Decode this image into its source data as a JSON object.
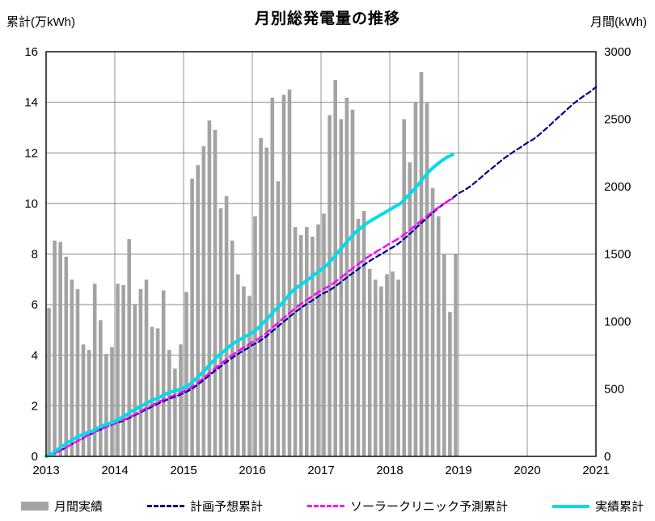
{
  "page": {
    "title": "月別総発電量の推移",
    "left_axis_unit": "累計(万kWh)",
    "right_axis_unit": "月間(kWh)"
  },
  "chart_data": {
    "type": "bar",
    "subtype": "combo-bar-and-cumulative-lines",
    "title": "月別総発電量の推移",
    "legend_position": "bottom",
    "grid": true,
    "x_axis": {
      "min": 2013,
      "max": 2021,
      "tick_labels": [
        "2013",
        "2014",
        "2015",
        "2016",
        "2017",
        "2018",
        "2019",
        "2020",
        "2021"
      ]
    },
    "left_axis": {
      "label": "累計(万kWh)",
      "min": 0,
      "max": 16,
      "step": 2,
      "tick_labels": [
        "0",
        "2",
        "4",
        "6",
        "8",
        "10",
        "12",
        "14",
        "16"
      ]
    },
    "right_axis": {
      "label": "月間(kWh)",
      "min": 0,
      "max": 3000,
      "step": 500,
      "tick_labels": [
        "0",
        "500",
        "1000",
        "1500",
        "2000",
        "2500",
        "3000"
      ]
    },
    "monthly_actual": {
      "id": "monthly-actual",
      "name": "月間実績",
      "type": "bar",
      "axis": "right",
      "color": "#a3a3a3",
      "start_month": "2013-01",
      "values_kwh": [
        1100,
        1600,
        1590,
        1480,
        1310,
        1240,
        830,
        790,
        1280,
        1010,
        760,
        810,
        1280,
        1270,
        1610,
        1130,
        1240,
        1310,
        960,
        950,
        1230,
        790,
        650,
        830,
        1220,
        2060,
        2160,
        2300,
        2490,
        2420,
        1840,
        1930,
        1600,
        1350,
        1260,
        1190,
        1780,
        2360,
        2290,
        2660,
        2040,
        2680,
        2720,
        1700,
        1640,
        1700,
        1630,
        1720,
        1800,
        2530,
        2790,
        2500,
        2660,
        2570,
        1760,
        1820,
        1390,
        1310,
        1260,
        1350,
        1370,
        1310,
        2500,
        2180,
        2630,
        2850,
        2620,
        1990,
        1780,
        1500,
        1070,
        1500
      ]
    },
    "series": [
      {
        "id": "plan-cumulative",
        "name": "計画予想累計",
        "type": "line",
        "axis": "left",
        "color": "#00008b",
        "dash": "6 4",
        "width": 2.2,
        "start_month": "2013-01",
        "cumulative_man_kwh": [
          0,
          0.08,
          0.18,
          0.29,
          0.42,
          0.55,
          0.66,
          0.79,
          0.9,
          1.01,
          1.11,
          1.2,
          1.3,
          1.37,
          1.46,
          1.57,
          1.68,
          1.8,
          1.91,
          2.03,
          2.13,
          2.23,
          2.32,
          2.4,
          2.5,
          2.61,
          2.76,
          2.93,
          3.11,
          3.3,
          3.47,
          3.65,
          3.82,
          3.97,
          4.12,
          4.25,
          4.4,
          4.52,
          4.67,
          4.85,
          5.04,
          5.24,
          5.42,
          5.61,
          5.79,
          5.95,
          6.1,
          6.24,
          6.4,
          6.51,
          6.64,
          6.81,
          6.98,
          7.16,
          7.32,
          7.49,
          7.65,
          7.8,
          7.93,
          8.06,
          8.2,
          8.33,
          8.5,
          8.7,
          8.9,
          9.12,
          9.32,
          9.53,
          9.73,
          9.91,
          10.07,
          10.22,
          10.4,
          10.52,
          10.67,
          10.85,
          11.04,
          11.24,
          11.42,
          11.61,
          11.79,
          11.95,
          12.1,
          12.24,
          12.4,
          12.53,
          12.7,
          12.9,
          13.1,
          13.32,
          13.52,
          13.73,
          13.93,
          14.11,
          14.27,
          14.42,
          14.6
        ]
      },
      {
        "id": "solar-clinic-forecast-cumulative",
        "name": "ソーラークリニック予測累計",
        "type": "line",
        "axis": "left",
        "color": "#ff00ff",
        "dash": "8 5",
        "width": 2.5,
        "start_month": "2013-01",
        "cumulative_man_kwh": [
          0,
          0.08,
          0.18,
          0.3,
          0.42,
          0.55,
          0.67,
          0.8,
          0.92,
          1.02,
          1.12,
          1.21,
          1.32,
          1.4,
          1.49,
          1.6,
          1.72,
          1.85,
          1.96,
          2.08,
          2.19,
          2.29,
          2.38,
          2.47,
          2.57,
          2.69,
          2.83,
          3.01,
          3.19,
          3.39,
          3.57,
          3.75,
          3.92,
          4.08,
          4.23,
          4.36,
          4.52,
          4.64,
          4.8,
          4.98,
          5.18,
          5.38,
          5.57,
          5.76,
          5.95,
          6.11,
          6.26,
          6.41,
          6.57,
          6.68,
          6.82,
          6.99,
          7.16,
          7.35,
          7.51,
          7.69,
          7.86,
          8.0,
          8.14,
          8.27,
          8.42,
          8.54,
          8.68,
          8.86,
          9.04,
          9.23,
          9.41,
          9.59,
          9.77,
          9.92,
          10.07,
          10.2
        ]
      },
      {
        "id": "actual-cumulative",
        "name": "実績累計",
        "type": "line",
        "axis": "left",
        "color": "#00dce8",
        "dash": "",
        "width": 4,
        "start_month": "2013-01",
        "cumulative_man_kwh": [
          0,
          0.11,
          0.27,
          0.43,
          0.58,
          0.71,
          0.83,
          0.92,
          0.99,
          1.12,
          1.22,
          1.3,
          1.38,
          1.51,
          1.64,
          1.8,
          1.91,
          2.03,
          2.16,
          2.26,
          2.36,
          2.48,
          2.56,
          2.62,
          2.71,
          2.83,
          3.03,
          3.25,
          3.48,
          3.73,
          3.97,
          4.15,
          4.35,
          4.51,
          4.64,
          4.77,
          4.89,
          5.07,
          5.3,
          5.53,
          5.8,
          6.0,
          6.27,
          6.54,
          6.71,
          6.87,
          7.04,
          7.21,
          7.38,
          7.56,
          7.81,
          8.09,
          8.34,
          8.61,
          8.86,
          9.04,
          9.22,
          9.36,
          9.49,
          9.62,
          9.75,
          9.89,
          10.02,
          10.27,
          10.49,
          10.75,
          11.04,
          11.3,
          11.5,
          11.68,
          11.83,
          11.93
        ]
      }
    ]
  }
}
